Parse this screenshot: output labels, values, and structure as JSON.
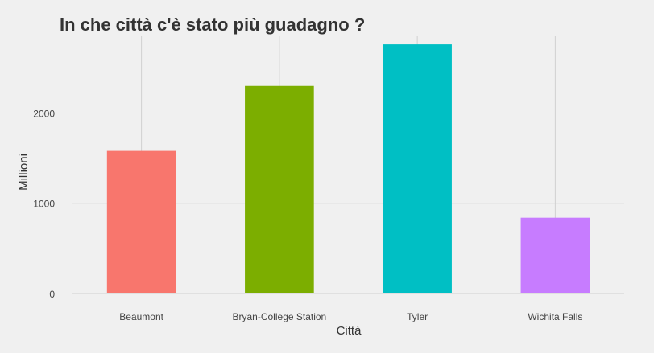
{
  "colors": {
    "background": "#f0f0f0",
    "grid": "#d0d0d0",
    "bars": [
      "#f8766d",
      "#7cae00",
      "#00bfc4",
      "#c77cff"
    ]
  },
  "chart_data": {
    "type": "bar",
    "title": "In che città c'è stato più guadagno ?",
    "xlabel": "Città",
    "ylabel": "Millioni",
    "categories": [
      "Beaumont",
      "Bryan-College Station",
      "Tyler",
      "Wichita Falls"
    ],
    "values": [
      1580,
      2300,
      2760,
      840
    ],
    "ylim": [
      0,
      2850
    ],
    "yticks": [
      0,
      1000,
      2000
    ],
    "ytick_labels": [
      "0",
      "1000",
      "2000"
    ],
    "grid": true,
    "legend": "none"
  }
}
